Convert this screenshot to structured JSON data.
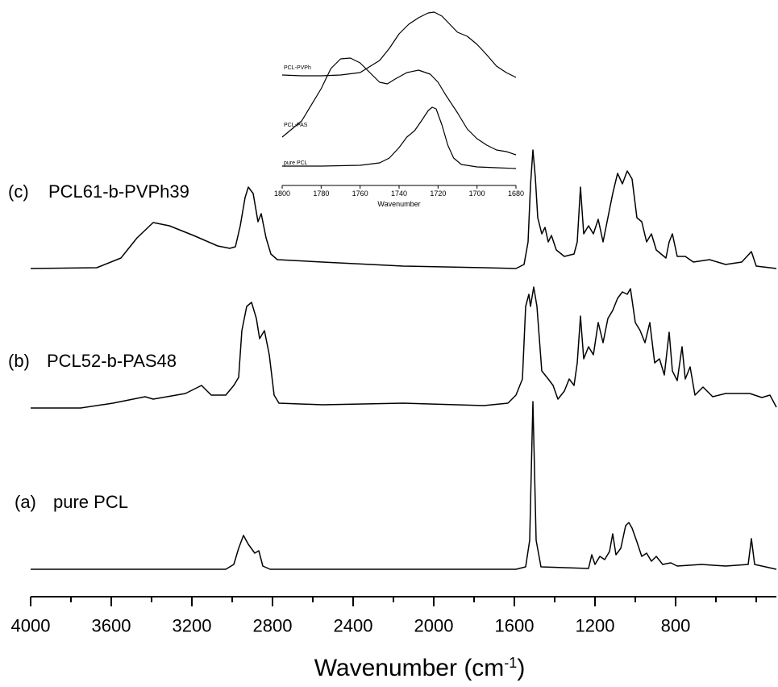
{
  "chart_data": [
    {
      "type": "line",
      "xlabel": [
        "Wavenumber (cm",
        "-1",
        ")"
      ],
      "xlim": [
        4000,
        300
      ],
      "ylim": [
        0,
        74
      ],
      "xticks": [
        4000,
        3600,
        3200,
        2800,
        2400,
        2000,
        1600,
        1200,
        800
      ],
      "xminor_ticks": [
        3800,
        3400,
        3000,
        2600,
        2200,
        1800,
        1400,
        1000,
        600,
        400
      ],
      "series": [
        {
          "tag": "(a)",
          "name": "pure PCL",
          "color": "#000000",
          "x": [
            4000,
            3032,
            2992,
            2968,
            2944,
            2920,
            2888,
            2868,
            2848,
            2812,
            1592,
            1544,
            1524,
            1508,
            1492,
            1468,
            1232,
            1216,
            1200,
            1176,
            1152,
            1128,
            1112,
            1096,
            1072,
            1048,
            1032,
            1016,
            992,
            968,
            944,
            920,
            896,
            864,
            824,
            792,
            672,
            552,
            440,
            424,
            408,
            300
          ],
          "values": [
            3.4,
            3.4,
            4.0,
            6.0,
            7.6,
            6.5,
            5.4,
            5.7,
            3.8,
            3.4,
            3.4,
            3.7,
            7.0,
            24.2,
            7.0,
            3.7,
            3.5,
            5.2,
            4.0,
            5.0,
            4.6,
            5.6,
            7.8,
            5.2,
            6.0,
            8.8,
            9.2,
            8.5,
            6.8,
            5.0,
            5.4,
            4.4,
            5.0,
            4.0,
            4.2,
            3.8,
            4.0,
            3.8,
            4.0,
            7.2,
            4.0,
            3.4
          ]
        },
        {
          "tag": "(b)",
          "name": "PCL52-b-PAS48",
          "color": "#000000",
          "x": [
            4000,
            3752,
            3592,
            3512,
            3432,
            3392,
            3232,
            3152,
            3104,
            3032,
            2992,
            2968,
            2952,
            2928,
            2904,
            2880,
            2864,
            2840,
            2816,
            2792,
            2768,
            2552,
            2152,
            1752,
            1632,
            1592,
            1560,
            1544,
            1528,
            1520,
            1504,
            1488,
            1464,
            1432,
            1408,
            1384,
            1352,
            1328,
            1304,
            1288,
            1272,
            1256,
            1232,
            1208,
            1184,
            1160,
            1136,
            1112,
            1088,
            1064,
            1040,
            1024,
            1000,
            976,
            952,
            928,
            904,
            880,
            856,
            832,
            816,
            792,
            768,
            752,
            728,
            704,
            664,
            616,
            552,
            432,
            372,
            332,
            300
          ],
          "values": [
            23.4,
            23.4,
            24.0,
            24.4,
            24.8,
            24.5,
            25.2,
            26.2,
            25.0,
            25.0,
            26.2,
            27.2,
            33.0,
            36.0,
            36.5,
            34.5,
            32.0,
            33.0,
            30.0,
            25.0,
            24.0,
            23.8,
            24.0,
            23.7,
            24.0,
            25.0,
            27.0,
            36.0,
            37.5,
            36.0,
            38.4,
            36.0,
            28.0,
            27.0,
            26.2,
            24.5,
            25.5,
            27.0,
            26.2,
            29.0,
            34.8,
            29.5,
            31.0,
            30.0,
            34.0,
            31.5,
            34.5,
            35.5,
            37.0,
            37.8,
            37.5,
            38.2,
            34.0,
            33.0,
            31.5,
            34.0,
            29.0,
            29.5,
            27.5,
            32.8,
            28.0,
            26.8,
            31.0,
            27.0,
            28.5,
            25.0,
            26.0,
            24.8,
            25.2,
            25.2,
            24.7,
            25.0,
            23.5
          ]
        },
        {
          "tag": "(c)",
          "name": "PCL61-b-PVPh39",
          "color": "#000000",
          "x": [
            4000,
            3672,
            3552,
            3472,
            3392,
            3312,
            3192,
            3072,
            3012,
            2984,
            2960,
            2936,
            2920,
            2896,
            2872,
            2856,
            2832,
            2808,
            2776,
            2552,
            2152,
            1752,
            1592,
            1552,
            1532,
            1520,
            1508,
            1496,
            1484,
            1464,
            1448,
            1432,
            1416,
            1392,
            1352,
            1304,
            1288,
            1272,
            1256,
            1232,
            1208,
            1184,
            1160,
            1136,
            1112,
            1088,
            1064,
            1040,
            1016,
            992,
            968,
            944,
            920,
            896,
            872,
            848,
            832,
            816,
            792,
            752,
            712,
            632,
            552,
            472,
            424,
            400,
            300
          ],
          "values": [
            40.7,
            40.8,
            42.0,
            44.5,
            46.4,
            46.0,
            44.8,
            43.5,
            43.2,
            43.4,
            46.0,
            49.5,
            50.8,
            50.0,
            46.5,
            47.5,
            44.5,
            42.5,
            41.8,
            41.5,
            41.0,
            40.8,
            40.7,
            41.2,
            44.0,
            51.0,
            55.4,
            52.0,
            47.0,
            45.0,
            45.8,
            44.0,
            44.8,
            43.0,
            42.2,
            42.5,
            44.0,
            50.8,
            45.0,
            46.0,
            45.0,
            46.8,
            44.0,
            47.0,
            50.0,
            52.5,
            51.2,
            52.8,
            51.8,
            47.0,
            46.5,
            44.0,
            45.0,
            43.0,
            42.5,
            42.0,
            44.0,
            45.0,
            42.2,
            42.2,
            41.5,
            41.8,
            41.2,
            41.5,
            42.8,
            41.0,
            40.7
          ]
        }
      ]
    },
    {
      "type": "line",
      "xlabel": "Wavenumber",
      "xlim": [
        1800,
        1680
      ],
      "ylim": [
        0,
        23
      ],
      "xticks": [
        1800,
        1780,
        1760,
        1740,
        1720,
        1700,
        1680
      ],
      "series": [
        {
          "name": "PCL-PVPh",
          "color": "#000000",
          "x": [
            1800,
            1790,
            1780,
            1770,
            1760,
            1750,
            1745,
            1740,
            1735,
            1730,
            1725,
            1722,
            1718,
            1714,
            1710,
            1705,
            1700,
            1695,
            1690,
            1685,
            1680
          ],
          "values": [
            13.7,
            13.6,
            13.6,
            13.7,
            14.0,
            15.5,
            17.0,
            18.8,
            20.0,
            20.8,
            21.4,
            21.5,
            21.0,
            20.0,
            19.0,
            18.5,
            17.5,
            16.2,
            14.8,
            14.0,
            13.4
          ]
        },
        {
          "name": "PCL-PAS",
          "color": "#000000",
          "x": [
            1800,
            1790,
            1780,
            1775,
            1770,
            1765,
            1760,
            1755,
            1750,
            1746,
            1742,
            1736,
            1730,
            1724,
            1720,
            1716,
            1710,
            1705,
            1700,
            1695,
            1690,
            1685,
            1680
          ],
          "values": [
            6.0,
            8.0,
            12.0,
            14.5,
            15.7,
            15.8,
            15.2,
            14.0,
            12.8,
            12.6,
            13.2,
            14.0,
            14.3,
            13.8,
            12.8,
            11.2,
            9.0,
            7.0,
            5.8,
            5.0,
            4.4,
            4.2,
            3.8
          ]
        },
        {
          "name": "pure PCL",
          "color": "#000000",
          "x": [
            1800,
            1780,
            1760,
            1750,
            1745,
            1740,
            1736,
            1732,
            1728,
            1725,
            1723,
            1721,
            1718,
            1715,
            1712,
            1708,
            1700,
            1690,
            1680
          ],
          "values": [
            2.4,
            2.4,
            2.5,
            2.8,
            3.4,
            4.7,
            6.0,
            6.8,
            8.2,
            9.3,
            9.7,
            9.5,
            7.5,
            5.0,
            3.4,
            2.6,
            2.3,
            2.2,
            2.1
          ]
        }
      ]
    }
  ]
}
